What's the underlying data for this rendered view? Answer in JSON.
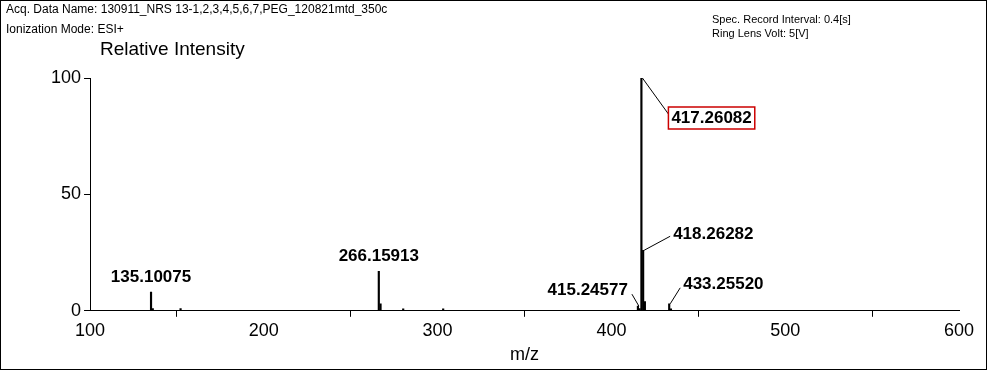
{
  "chart_data": {
    "type": "bar",
    "header": [
      "Acq. Data Name: 130911_NRS 13-1,2,3,4,5,6,7,PEG_120821mtd_350c",
      "Ionization Mode: ESI+"
    ],
    "header_right": [
      "Spec. Record Interval: 0.4[s]",
      "Ring Lens Volt: 5[V]"
    ],
    "y_label": "Relative Intensity",
    "x_label": "m/z",
    "x": [
      135.10075,
      136.1,
      152.1,
      266.15913,
      267.16,
      280.2,
      303.2,
      415.24577,
      416.25,
      417.26082,
      418.26282,
      419.26,
      433.2552,
      434.26
    ],
    "values": [
      8,
      1,
      1,
      17,
      3,
      0.8,
      0.8,
      2,
      1,
      100,
      26,
      4,
      3,
      0.8
    ],
    "annotations": [
      {
        "x": 135.10075,
        "text": "135.10075"
      },
      {
        "x": 266.15913,
        "text": "266.15913"
      },
      {
        "x": 415.24577,
        "text": "415.24577"
      },
      {
        "x": 417.26082,
        "text": "417.26082"
      },
      {
        "x": 418.26282,
        "text": "418.26282"
      },
      {
        "x": 433.2552,
        "text": "433.25520"
      }
    ],
    "color": "#000000",
    "xlim": [
      100,
      600
    ],
    "xticks": [
      100,
      200,
      300,
      400,
      500,
      600
    ],
    "ylim": [
      0,
      100
    ],
    "yticks": [
      0,
      50,
      100
    ],
    "grid": false
  }
}
